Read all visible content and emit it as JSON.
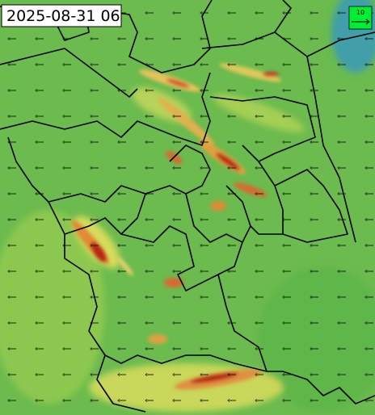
{
  "timestamp": "2025-08-31 06",
  "legend": {
    "label": "10"
  }
}
